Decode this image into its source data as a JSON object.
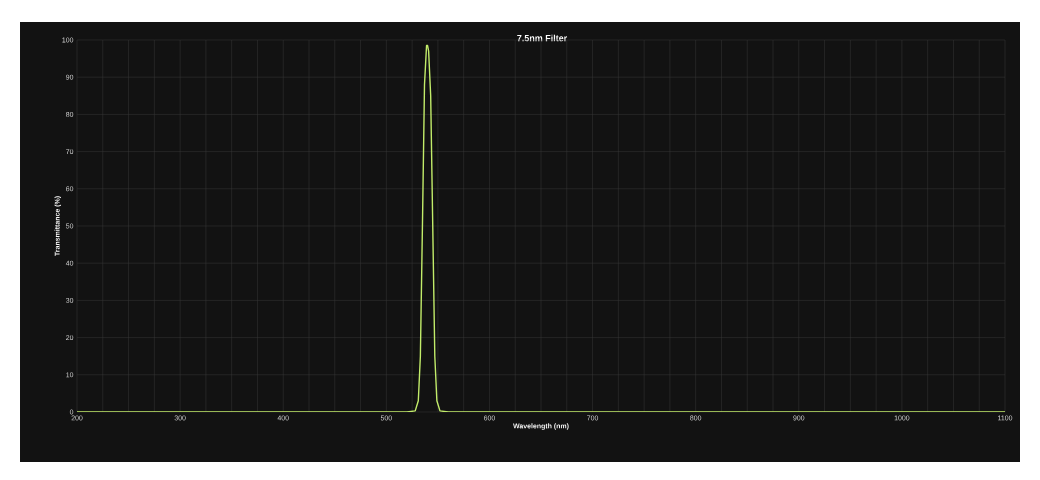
{
  "chart_data": {
    "type": "line",
    "title": "7.5nm Filter",
    "xlabel": "Wavelength (nm)",
    "ylabel": "Transmittance (%)",
    "x": [
      200,
      400,
      520,
      528,
      531,
      533,
      535,
      537,
      539,
      540,
      541,
      543,
      545,
      547,
      549,
      552,
      560,
      700,
      1100
    ],
    "series": [
      {
        "color": "#c2ec6a",
        "values": [
          0,
          0,
          0,
          0.3,
          3,
          15,
          50,
          88,
          98.5,
          98.5,
          97,
          85,
          50,
          15,
          3,
          0.3,
          0,
          0,
          0
        ]
      }
    ],
    "xlim": [
      200,
      1100
    ],
    "ylim": [
      0,
      100
    ],
    "xticks": [
      200,
      {
        "value": 225,
        "label": null
      },
      {
        "value": 250,
        "label": null
      },
      {
        "value": 275,
        "label": null
      },
      300,
      {
        "value": 325,
        "label": null
      },
      {
        "value": 350,
        "label": null
      },
      {
        "value": 375,
        "label": null
      },
      400,
      {
        "value": 425,
        "label": null
      },
      {
        "value": 450,
        "label": null
      },
      {
        "value": 475,
        "label": null
      },
      500,
      {
        "value": 525,
        "label": null
      },
      {
        "value": 550,
        "label": null
      },
      {
        "value": 575,
        "label": null
      },
      600,
      {
        "value": 625,
        "label": null
      },
      {
        "value": 650,
        "label": null
      },
      {
        "value": 675,
        "label": null
      },
      700,
      {
        "value": 725,
        "label": null
      },
      {
        "value": 750,
        "label": null
      },
      {
        "value": 775,
        "label": null
      },
      800,
      {
        "value": 825,
        "label": null
      },
      {
        "value": 850,
        "label": null
      },
      {
        "value": 875,
        "label": null
      },
      900,
      {
        "value": 925,
        "label": null
      },
      {
        "value": 950,
        "label": null
      },
      {
        "value": 975,
        "label": null
      },
      1000,
      {
        "value": 1025,
        "label": null
      },
      {
        "value": 1050,
        "label": null
      },
      {
        "value": 1075,
        "label": null
      },
      1100
    ],
    "yticks": [
      0,
      10,
      20,
      30,
      40,
      50,
      60,
      70,
      80,
      90,
      100
    ],
    "grid": true,
    "marker": "none",
    "line_style": "solid"
  }
}
